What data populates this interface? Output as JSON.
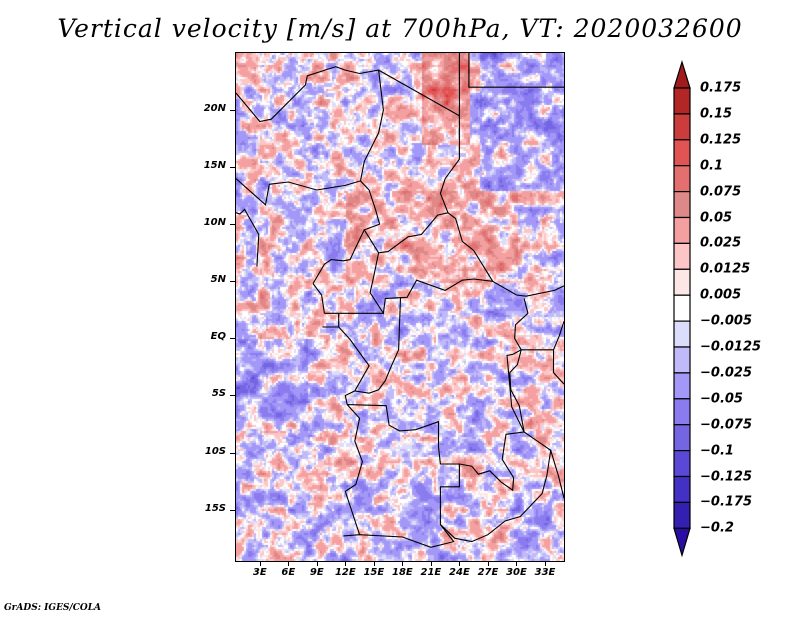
{
  "chart_data": {
    "type": "heatmap",
    "title": "Vertical velocity [m/s] at 700hPa, VT: 2020032600",
    "variable": "Vertical velocity",
    "units": "m/s",
    "level": "700hPa",
    "valid_time": "2020032600",
    "xlabel": "",
    "ylabel": "",
    "lon_range": [
      0.5,
      35
    ],
    "lat_range": [
      -19.5,
      25
    ],
    "x_ticks": [
      "3E",
      "6E",
      "9E",
      "12E",
      "15E",
      "18E",
      "21E",
      "24E",
      "27E",
      "30E",
      "33E"
    ],
    "x_tick_values": [
      3,
      6,
      9,
      12,
      15,
      18,
      21,
      24,
      27,
      30,
      33
    ],
    "y_ticks": [
      "20N",
      "15N",
      "10N",
      "5N",
      "EQ",
      "5S",
      "10S",
      "15S"
    ],
    "y_tick_values": [
      20,
      15,
      10,
      5,
      0,
      -5,
      -10,
      -15
    ],
    "colorbar": {
      "orientation": "vertical",
      "placement": "right",
      "levels": [
        0.175,
        0.15,
        0.125,
        0.1,
        0.075,
        0.05,
        0.025,
        0.0125,
        0.005,
        -0.005,
        -0.0125,
        -0.025,
        -0.05,
        -0.075,
        -0.1,
        -0.125,
        -0.175,
        -0.2
      ],
      "labels": [
        "0.175",
        "0.15",
        "0.125",
        "0.1",
        "0.075",
        "0.05",
        "0.025",
        "0.0125",
        "0.005",
        "−0.005",
        "−0.0125",
        "−0.025",
        "−0.05",
        "−0.075",
        "−0.1",
        "−0.125",
        "−0.175",
        "−0.2"
      ],
      "colors": [
        "#a01c1c",
        "#b32626",
        "#cb3d3d",
        "#e25454",
        "#e46f6f",
        "#df8888",
        "#f5a0a0",
        "#fcc6c6",
        "#fde6e6",
        "#ffffff",
        "#dcdcfb",
        "#c0baf9",
        "#a398f7",
        "#8a7cef",
        "#7466e2",
        "#5a48d6",
        "#4330c4",
        "#3420b0",
        "#2a0ea4"
      ],
      "extend": "both"
    },
    "grid": false,
    "features": "country borders and coastlines of central Africa"
  },
  "footer": {
    "credit": "GrADS: IGES/COLA"
  }
}
